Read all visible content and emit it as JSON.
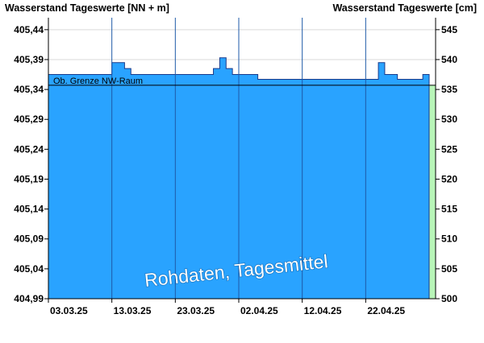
{
  "chart_data": {
    "type": "area",
    "y_left_title": "Wasserstand Tageswerte [NN + m]",
    "y_right_title": "Wasserstand Tageswerte [cm]",
    "y_left_ticks": [
      "405,44",
      "405,39",
      "405,34",
      "405,29",
      "405,24",
      "405,19",
      "405,14",
      "405,09",
      "405,04",
      "404,99"
    ],
    "y_left_tick_values": [
      405.44,
      405.39,
      405.34,
      405.29,
      405.24,
      405.19,
      405.14,
      405.09,
      405.04,
      404.99
    ],
    "y_right_ticks": [
      "545",
      "540",
      "535",
      "530",
      "525",
      "520",
      "515",
      "510",
      "505",
      "500"
    ],
    "y_right_tick_values": [
      545,
      540,
      535,
      530,
      525,
      520,
      515,
      510,
      505,
      500
    ],
    "ylim_cm": [
      500,
      547
    ],
    "x_ticks": [
      "03.03.25",
      "13.03.25",
      "23.03.25",
      "02.04.25",
      "12.04.25",
      "22.04.25"
    ],
    "x_tick_days": [
      0,
      10,
      20,
      30,
      40,
      50
    ],
    "x_range_days": [
      0,
      60
    ],
    "threshold": {
      "label": "Ob. Grenze NW-Raum",
      "value_cm": 535.7
    },
    "watermark": "Rohdaten, Tagesmittel",
    "series": [
      {
        "values_cm": [
          537.5,
          537.5,
          537.5,
          537.5,
          537.5,
          537.5,
          537.5,
          537.5,
          537.5,
          537.5,
          539.5,
          539.5,
          538.5,
          537.5,
          537.5,
          537.5,
          537.5,
          537.5,
          537.5,
          537.5,
          537.5,
          537.5,
          537.5,
          537.5,
          537.5,
          537.5,
          538.5,
          540.3,
          538.5,
          537.5,
          537.5,
          537.5,
          537.5,
          536.7,
          536.7,
          536.7,
          536.7,
          536.7,
          536.7,
          536.7,
          536.7,
          536.7,
          536.7,
          536.7,
          536.7,
          536.7,
          536.7,
          536.7,
          536.7,
          536.7,
          536.7,
          536.7,
          539.5,
          537.5,
          537.5,
          536.7,
          536.7,
          536.7,
          536.7,
          537.5
        ]
      }
    ],
    "colors": {
      "area_fill": "#29a3ff",
      "area_line": "#1a3a8a",
      "gridline": "#d9d9d9",
      "vertical_gridline": "#1e5aa8",
      "threshold_line": "#000000",
      "forecast_band": "#b8f5b8"
    },
    "grid": true
  }
}
